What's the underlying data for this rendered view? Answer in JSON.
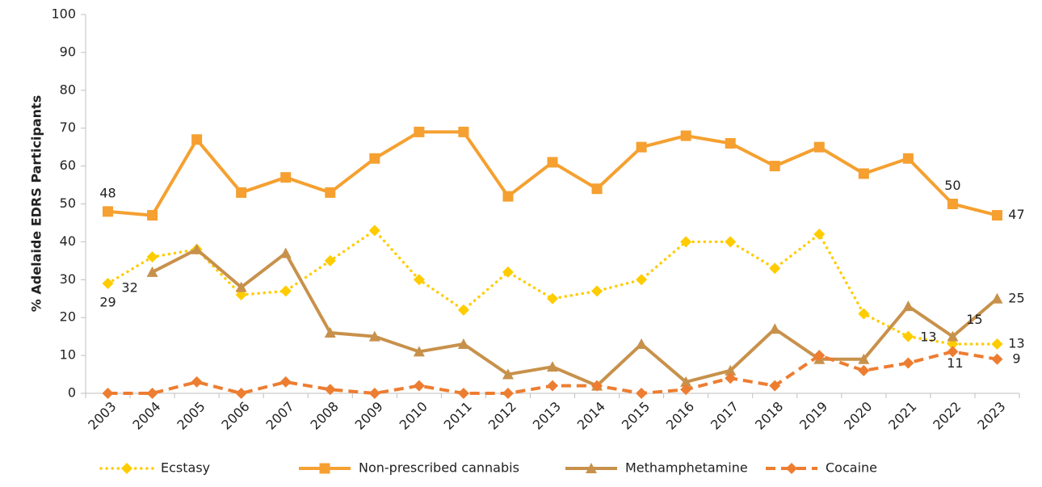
{
  "chart_data": {
    "type": "line",
    "y_axis_label": "% Adelaide EDRS Participants",
    "categories": [
      "2003",
      "2004",
      "2005",
      "2006",
      "2007",
      "2008",
      "2009",
      "2010",
      "2011",
      "2012",
      "2013",
      "2014",
      "2015",
      "2016",
      "2017",
      "2018",
      "2019",
      "2020",
      "2021",
      "2022",
      "2023"
    ],
    "ylim": [
      0,
      100
    ],
    "yticks": [
      0,
      10,
      20,
      30,
      40,
      50,
      60,
      70,
      80,
      90,
      100
    ],
    "legend": "bottom",
    "series": [
      {
        "name": "Ecstasy",
        "color": "#ffcc00",
        "marker": "diamond",
        "line": "dotted",
        "values": [
          29,
          36,
          38,
          26,
          27,
          35,
          43,
          30,
          22,
          32,
          25,
          27,
          30,
          40,
          40,
          33,
          42,
          21,
          15,
          13,
          13
        ],
        "value_labels": [
          "29",
          null,
          null,
          null,
          null,
          null,
          null,
          null,
          null,
          null,
          null,
          null,
          null,
          null,
          null,
          null,
          null,
          null,
          null,
          "13",
          "13"
        ]
      },
      {
        "name": "Non-prescribed cannabis",
        "color": "#f5a030",
        "marker": "square",
        "line": "solid",
        "values": [
          48,
          47,
          67,
          53,
          57,
          53,
          62,
          69,
          69,
          52,
          61,
          54,
          65,
          68,
          66,
          60,
          65,
          58,
          62,
          50,
          47
        ],
        "value_labels": [
          "48",
          null,
          null,
          null,
          null,
          null,
          null,
          null,
          null,
          null,
          null,
          null,
          null,
          null,
          null,
          null,
          null,
          null,
          null,
          "50",
          "47"
        ]
      },
      {
        "name": "Methamphetamine",
        "color": "#c8914b",
        "marker": "triangle",
        "line": "solid",
        "values": [
          null,
          32,
          38,
          28,
          37,
          16,
          15,
          11,
          13,
          5,
          7,
          2,
          13,
          3,
          6,
          17,
          9,
          9,
          23,
          15,
          25
        ],
        "value_labels": [
          null,
          "32",
          null,
          null,
          null,
          null,
          null,
          null,
          null,
          null,
          null,
          null,
          null,
          null,
          null,
          null,
          null,
          null,
          null,
          "15",
          "25"
        ]
      },
      {
        "name": "Cocaine",
        "color": "#ed7d31",
        "marker": "diamond",
        "line": "dashed",
        "values": [
          0,
          0,
          3,
          0,
          3,
          1,
          0,
          2,
          0,
          0,
          2,
          2,
          0,
          1,
          4,
          2,
          10,
          6,
          8,
          11,
          9
        ],
        "value_labels": [
          null,
          null,
          null,
          null,
          null,
          null,
          null,
          null,
          null,
          null,
          null,
          null,
          null,
          null,
          null,
          null,
          null,
          null,
          null,
          "11",
          "9"
        ]
      }
    ]
  }
}
